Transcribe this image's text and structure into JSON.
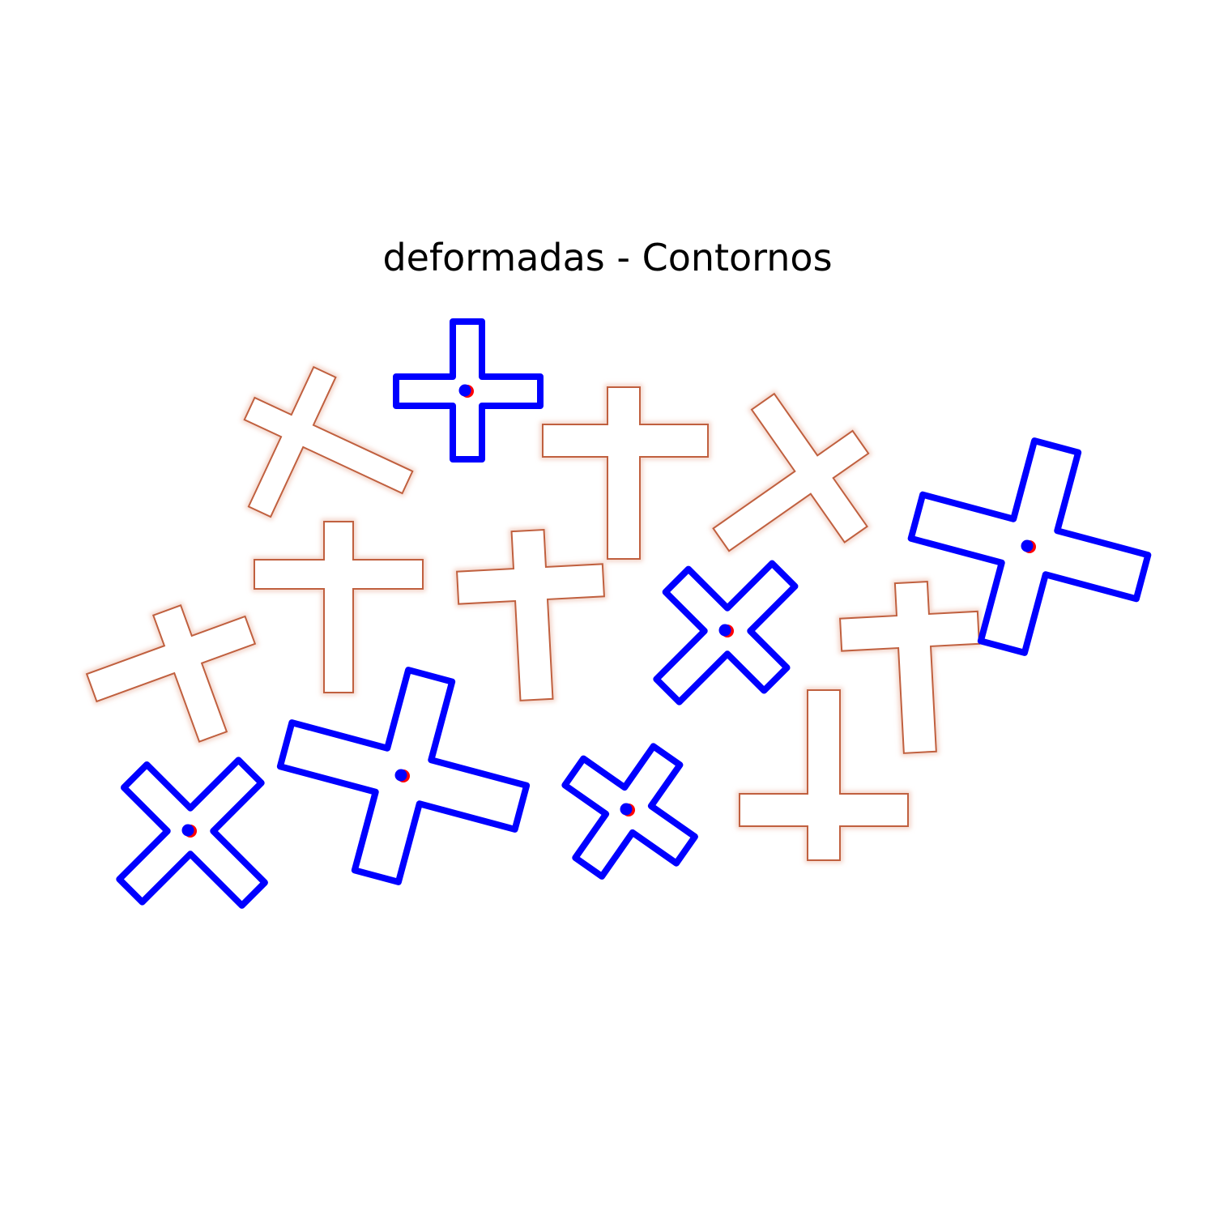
{
  "title": "deformadas - Contornos",
  "colors": {
    "background": "#ffffff",
    "detected_contour": "#0000ff",
    "centroid_outer": "#0000ff",
    "centroid_inner": "#ff0000",
    "shape_outline": "#c0603f",
    "shape_glow": "#f3d3c8"
  }
}
